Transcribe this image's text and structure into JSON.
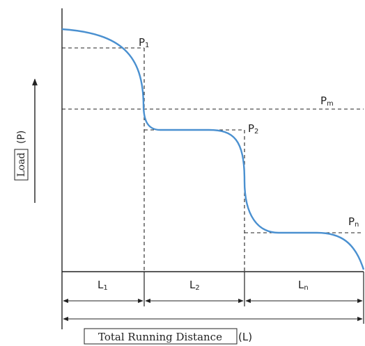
{
  "diagram": {
    "title": "",
    "load_labels": {
      "p1": "P",
      "p1_sub": "1",
      "p2": "P",
      "p2_sub": "2",
      "pm": "P",
      "pm_sub": "m",
      "pn": "P",
      "pn_sub": "n"
    },
    "segment_labels": {
      "l1": "L",
      "l1_sub": "1",
      "l2": "L",
      "l2_sub": "2",
      "ln": "L",
      "ln_sub": "n"
    },
    "y_axis_label": {
      "boxed": "Load",
      "suffix": "(P)"
    },
    "x_axis_label": {
      "boxed": "Total Running Distance",
      "suffix": "(L)"
    },
    "colors": {
      "curve": "#4a90d0",
      "axis": "#222222",
      "dashed": "#222222"
    }
  }
}
